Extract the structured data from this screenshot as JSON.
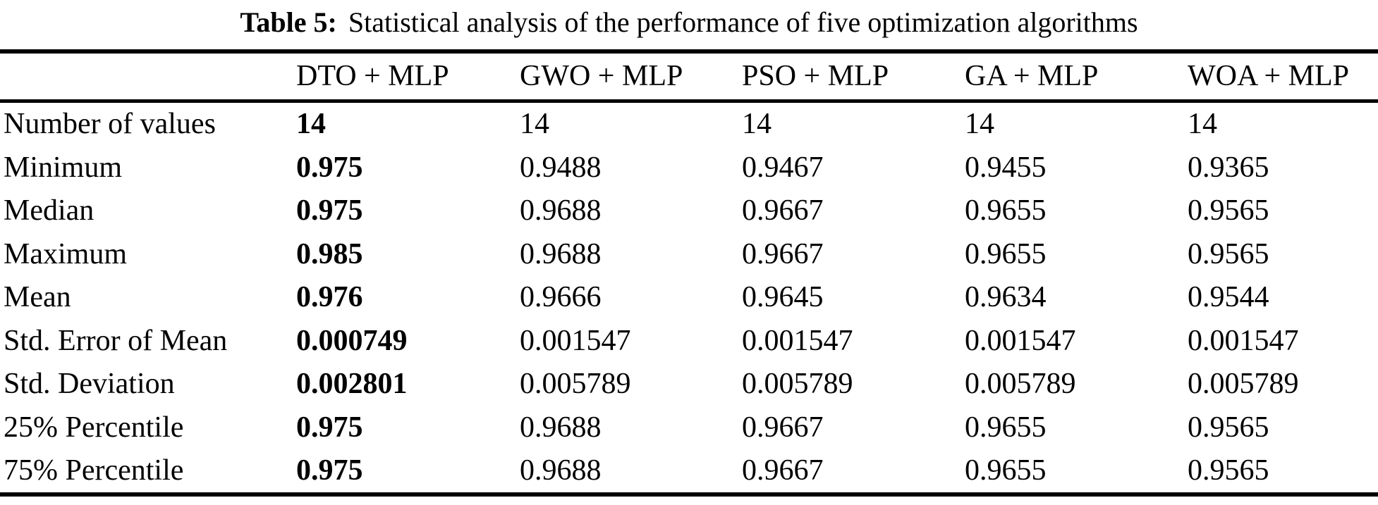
{
  "caption": {
    "label": "Table 5:",
    "text": "Statistical analysis of the performance of five optimization algorithms"
  },
  "table": {
    "corner_label": "",
    "columns": [
      "DTO + MLP",
      "GWO + MLP",
      "PSO + MLP",
      "GA + MLP",
      "WOA + MLP"
    ],
    "bold_column_index": 0,
    "rows": [
      {
        "label": "Number of values",
        "values": [
          "14",
          "14",
          "14",
          "14",
          "14"
        ]
      },
      {
        "label": "Minimum",
        "values": [
          "0.975",
          "0.9488",
          "0.9467",
          "0.9455",
          "0.9365"
        ]
      },
      {
        "label": "Median",
        "values": [
          "0.975",
          "0.9688",
          "0.9667",
          "0.9655",
          "0.9565"
        ]
      },
      {
        "label": "Maximum",
        "values": [
          "0.985",
          "0.9688",
          "0.9667",
          "0.9655",
          "0.9565"
        ]
      },
      {
        "label": "Mean",
        "values": [
          "0.976",
          "0.9666",
          "0.9645",
          "0.9634",
          "0.9544"
        ]
      },
      {
        "label": "Std. Error of Mean",
        "values": [
          "0.000749",
          "0.001547",
          "0.001547",
          "0.001547",
          "0.001547"
        ]
      },
      {
        "label": "Std. Deviation",
        "values": [
          "0.002801",
          "0.005789",
          "0.005789",
          "0.005789",
          "0.005789"
        ]
      },
      {
        "label": "25% Percentile",
        "values": [
          "0.975",
          "0.9688",
          "0.9667",
          "0.9655",
          "0.9565"
        ]
      },
      {
        "label": "75% Percentile",
        "values": [
          "0.975",
          "0.9688",
          "0.9667",
          "0.9655",
          "0.9565"
        ]
      }
    ]
  },
  "colors": {
    "text": "#000000",
    "background": "#ffffff",
    "rule": "#000000"
  }
}
